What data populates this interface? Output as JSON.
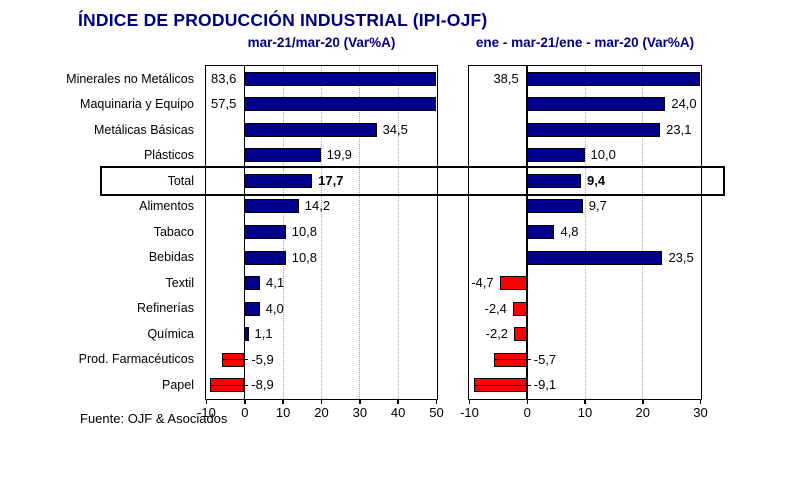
{
  "title": "ÍNDICE DE PRODUCCIÓN INDUSTRIAL (IPI-OJF)",
  "footer": "Fuente: OJF & Asociados",
  "colors": {
    "title_text": "#000080",
    "positive_bar": "#00008B",
    "negative_bar": "#FF0000",
    "bar_border": "#000000",
    "gridline": "#A6A6A6",
    "highlight_border": "#000000"
  },
  "chart_data": {
    "type": "bar",
    "orientation": "horizontal",
    "grid": "dotted-vertical",
    "legend": "none",
    "highlight_category": "Total",
    "categories": [
      "Minerales no Metálicos",
      "Maquinaria y Equipo",
      "Metálicas Básicas",
      "Plásticos",
      "Total",
      "Alimentos",
      "Tabaco",
      "Bebidas",
      "Textil",
      "Refinerías",
      "Química",
      "Prod. Farmacéuticos",
      "Papel"
    ],
    "series": [
      {
        "name": "mar-21/mar-20  (Var%A)",
        "xlim": [
          -10,
          50
        ],
        "ticks": [
          -10,
          0,
          10,
          20,
          30,
          40,
          50
        ],
        "values": [
          83.6,
          57.5,
          34.5,
          19.9,
          17.7,
          14.2,
          10.8,
          10.8,
          4.1,
          4.0,
          1.1,
          -5.9,
          -8.9
        ],
        "labels": [
          "83,6",
          "57,5",
          "34,5",
          "19,9",
          "17,7",
          "14,2",
          "10,8",
          "10,8",
          "4,1",
          "4,0",
          "1,1",
          "-5,9",
          "-8,9"
        ]
      },
      {
        "name": "ene - mar-21/ene - mar-20  (Var%A)",
        "xlim": [
          -10,
          30
        ],
        "ticks": [
          -10,
          0,
          10,
          20,
          30
        ],
        "values": [
          38.5,
          24.0,
          23.1,
          10.0,
          9.4,
          9.7,
          4.8,
          23.5,
          -4.7,
          -2.4,
          -2.2,
          -5.7,
          -9.1
        ],
        "labels": [
          "38,5",
          "24,0",
          "23,1",
          "10,0",
          "9,4",
          "9,7",
          "4,8",
          "23,5",
          "-4,7",
          "-2,4",
          "-2,2",
          "-5,7",
          "-9,1"
        ]
      }
    ]
  }
}
